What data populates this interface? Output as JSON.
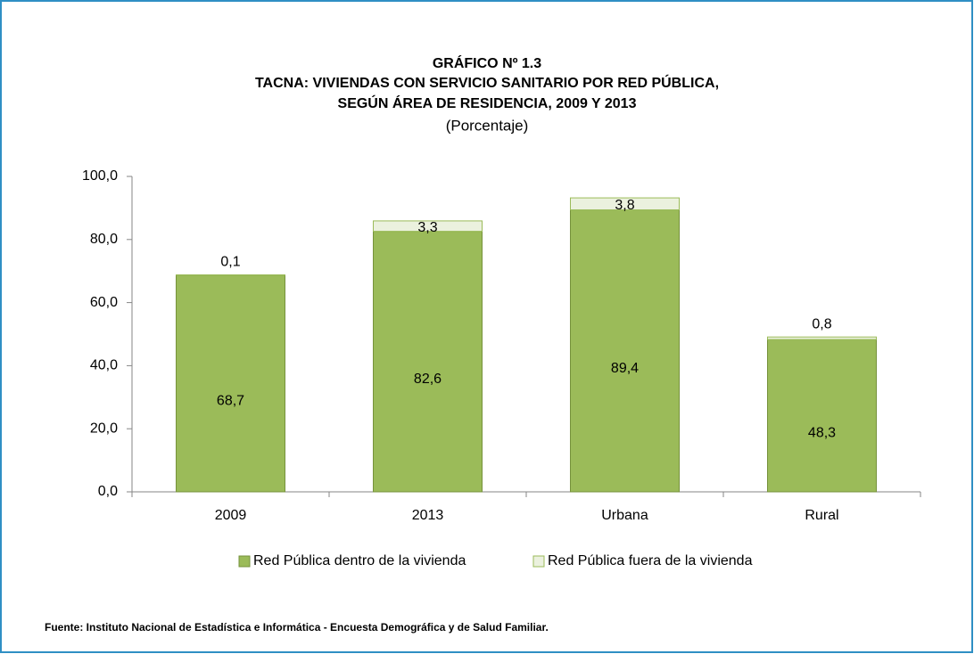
{
  "chart_data": {
    "type": "stacked_bar",
    "title": [
      "GRÁFICO Nº 1.3",
      "TACNA: VIVIENDAS CON SERVICIO SANITARIO POR RED PÚBLICA,",
      "SEGÚN ÁREA DE RESIDENCIA,  2009 Y 2013"
    ],
    "subtitle": "(Porcentaje)",
    "categories": [
      "2009",
      "2013",
      "Urbana",
      "Rural"
    ],
    "series": [
      {
        "name": "Red Pública dentro de la vivienda",
        "color": "#9bbb59",
        "values": [
          68.7,
          82.6,
          89.4,
          48.3
        ],
        "value_labels": [
          "68,7",
          "82,6",
          "89,4",
          "48,3"
        ]
      },
      {
        "name": "Red Pública fuera de la vivienda",
        "color": "#ebf1de",
        "values": [
          0.1,
          3.3,
          3.8,
          0.8
        ],
        "value_labels": [
          "0,1",
          "3,3",
          "3,8",
          "0,8"
        ]
      }
    ],
    "ylim": [
      0,
      100
    ],
    "yticks": [
      {
        "value": 0,
        "label": "0,0"
      },
      {
        "value": 20,
        "label": "20,0"
      },
      {
        "value": 40,
        "label": "40,0"
      },
      {
        "value": 60,
        "label": "60,0"
      },
      {
        "value": 80,
        "label": "80,0"
      },
      {
        "value": 100,
        "label": "100,0"
      }
    ],
    "legend": "bottom",
    "source": "Fuente: Instituto Nacional de Estadística e Informática - Encuesta Demográfica y de Salud Familiar."
  }
}
